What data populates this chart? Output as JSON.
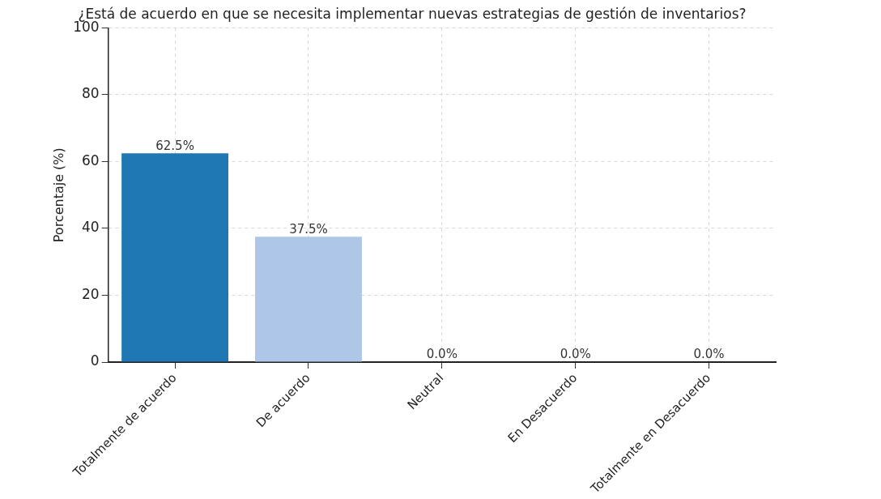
{
  "chart_data": {
    "type": "bar",
    "title": "¿Está de acuerdo en que se necesita implementar nuevas estrategias de gestión de inventarios?",
    "ylabel": "Porcentaje (%)",
    "categories": [
      "Totalmente de acuerdo",
      "De acuerdo",
      "Neutral",
      "En Desacuerdo",
      "Totalmente en Desacuerdo"
    ],
    "values": [
      62.5,
      37.5,
      0.0,
      0.0,
      0.0
    ],
    "colors": [
      "#1f77b4",
      "#aec7e8",
      "#ff7f0e",
      "#ffbb78",
      "#2ca02c"
    ],
    "value_labels": [
      "62.5%",
      "37.5%",
      "0.0%",
      "0.0%",
      "0.0%"
    ],
    "ylim": [
      0,
      100
    ],
    "yticks": [
      0,
      20,
      40,
      60,
      80,
      100
    ],
    "grid": true
  }
}
